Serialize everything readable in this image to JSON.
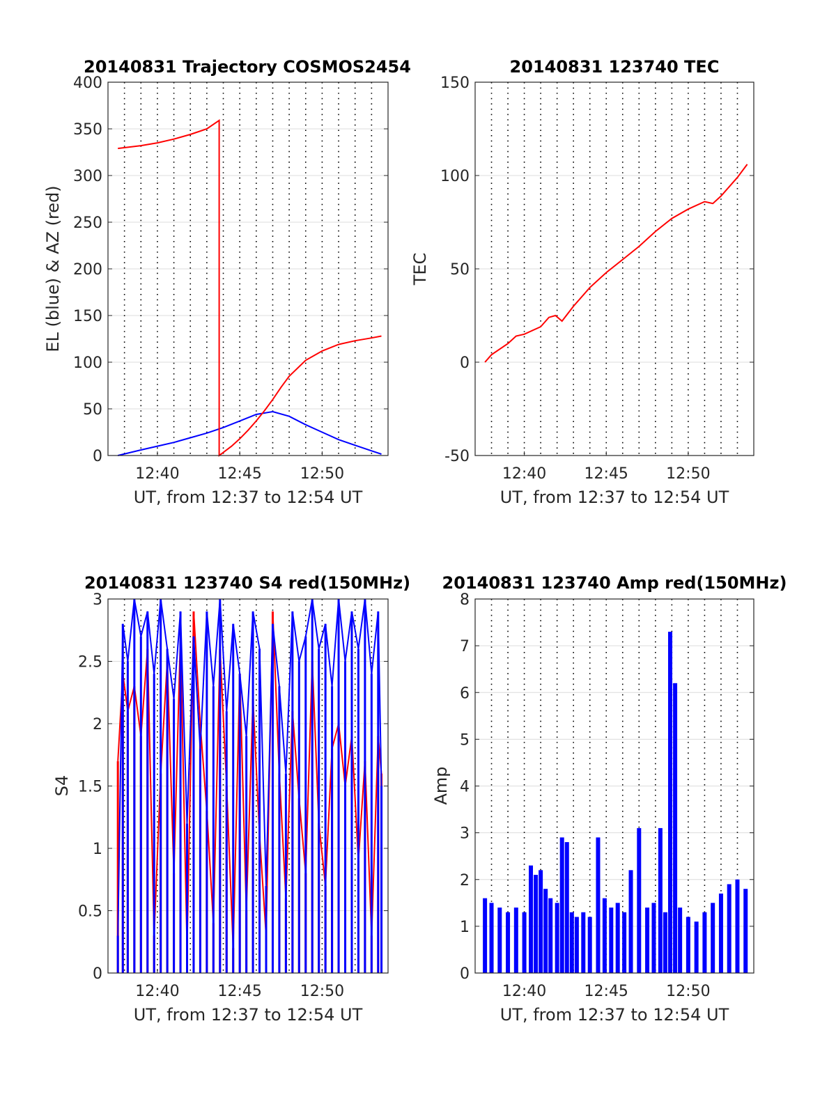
{
  "figure": {
    "background": "#ffffff"
  },
  "colors": {
    "el": "#0000ff",
    "az": "#ff0000",
    "tec": "#ff0000",
    "s4_a": "#ff0000",
    "s4_b": "#0000ff",
    "amp": "#0000ff"
  },
  "panels": [
    {
      "id": "traj",
      "title": "20140831 Trajectory COSMOS2454",
      "xlabel": "UT, from 12:37 to 12:54 UT",
      "ylabel": "EL (blue) & AZ (red)",
      "xticks": [
        "12:40",
        "12:45",
        "12:50"
      ],
      "yticks": [
        "0",
        "50",
        "100",
        "150",
        "200",
        "250",
        "300",
        "350",
        "400"
      ]
    },
    {
      "id": "tec",
      "title": "20140831 123740 TEC",
      "xlabel": "UT, from 12:37 to 12:54 UT",
      "ylabel": "TEC",
      "xticks": [
        "12:40",
        "12:45",
        "12:50"
      ],
      "yticks": [
        "-50",
        "0",
        "50",
        "100",
        "150"
      ]
    },
    {
      "id": "s4",
      "title": "20140831 123740 S4 red(150MHz)",
      "xlabel": "UT, from 12:37 to 12:54 UT",
      "ylabel": "S4",
      "xticks": [
        "12:40",
        "12:45",
        "12:50"
      ],
      "yticks": [
        "0",
        "0.5",
        "1",
        "1.5",
        "2",
        "2.5",
        "3"
      ]
    },
    {
      "id": "amp",
      "title": "20140831 123740 Amp red(150MHz)",
      "xlabel": "UT, from 12:37 to 12:54 UT",
      "ylabel": "Amp",
      "xticks": [
        "12:40",
        "12:45",
        "12:50"
      ],
      "yticks": [
        "0",
        "1",
        "2",
        "3",
        "4",
        "5",
        "6",
        "7",
        "8"
      ]
    }
  ],
  "chart_data": [
    {
      "type": "line",
      "title": "20140831 Trajectory COSMOS2454",
      "xlabel": "UT, from 12:37 to 12:54 UT",
      "ylabel": "EL (blue) & AZ (red)",
      "xlim": [
        "12:37",
        "12:54"
      ],
      "ylim": [
        0,
        400
      ],
      "grid": true,
      "x_unit": "minutes since 12:37",
      "series": [
        {
          "color": "#0000ff",
          "x": [
            0.6,
            2,
            3,
            4,
            5,
            6,
            7,
            8,
            9,
            10,
            11,
            12,
            13,
            14,
            15,
            16,
            16.6
          ],
          "y": [
            0,
            6,
            10,
            14,
            19,
            24,
            30,
            37,
            44,
            47,
            42,
            33,
            25,
            17,
            11,
            5,
            1.5
          ]
        },
        {
          "color": "#ff0000",
          "x": [
            0.6,
            2,
            3,
            4,
            5,
            5.5,
            6,
            6.75,
            6.75,
            7.5,
            8,
            8.5,
            9,
            9.5,
            10,
            10.5,
            11,
            12,
            13,
            14,
            15,
            16,
            16.6
          ],
          "y": [
            329,
            332,
            335,
            339,
            344,
            347,
            350,
            359,
            0,
            10,
            18,
            27,
            37,
            48,
            60,
            73,
            85,
            102,
            112,
            119,
            123,
            126,
            128
          ]
        }
      ]
    },
    {
      "type": "line",
      "title": "20140831 123740 TEC",
      "xlabel": "UT, from 12:37 to 12:54 UT",
      "ylabel": "TEC",
      "xlim": [
        "12:37",
        "12:54"
      ],
      "ylim": [
        -50,
        150
      ],
      "grid": true,
      "x_unit": "minutes since 12:37",
      "series": [
        {
          "color": "#ff0000",
          "x": [
            0.6,
            1,
            2,
            2.5,
            3,
            4,
            4.5,
            4.9,
            5.3,
            6,
            7,
            8,
            9,
            10,
            11,
            12,
            13,
            14,
            14.5,
            15,
            16,
            16.6
          ],
          "y": [
            0,
            4,
            10,
            14,
            15,
            19,
            24,
            25,
            22,
            30,
            40,
            48,
            55,
            62,
            70,
            77,
            82,
            86,
            85,
            89,
            99,
            106
          ]
        }
      ]
    },
    {
      "type": "line",
      "title": "20140831 123740 S4 red(150MHz)",
      "xlabel": "UT, from 12:37 to 12:54 UT",
      "ylabel": "S4",
      "xlim": [
        "12:37",
        "12:54"
      ],
      "ylim": [
        0,
        3
      ],
      "grid": true,
      "x_unit": "minutes since 12:37",
      "note": "",
      "series": [
        {
          "color": "#ff0000",
          "x": [
            0.6,
            0.9,
            1.2,
            1.6,
            2.0,
            2.4,
            2.8,
            3.2,
            3.6,
            4.0,
            4.4,
            4.8,
            5.2,
            5.6,
            6.0,
            6.4,
            6.8,
            7.2,
            7.6,
            8.0,
            8.4,
            8.8,
            9.2,
            9.6,
            10.0,
            10.4,
            10.8,
            11.2,
            11.6,
            12.0,
            12.4,
            12.8,
            13.2,
            13.6,
            14.0,
            14.4,
            14.8,
            15.2,
            15.6,
            16.0,
            16.4,
            16.6
          ],
          "y": [
            1.7,
            2.4,
            2.1,
            2.3,
            1.9,
            2.6,
            0.3,
            1.6,
            2.5,
            0.8,
            2.7,
            0.2,
            2.9,
            2.0,
            1.3,
            0.4,
            2.6,
            1.5,
            0.2,
            2.4,
            0.5,
            2.2,
            1.1,
            0.3,
            2.9,
            1.6,
            0.6,
            2.1,
            1.4,
            0.8,
            2.5,
            1.2,
            0.7,
            1.8,
            2.0,
            1.5,
            1.9,
            0.9,
            1.7,
            0.3,
            1.9,
            1.6
          ]
        },
        {
          "color": "#0000ff",
          "x": [
            0.6,
            0.9,
            1.2,
            1.6,
            2.0,
            2.4,
            2.8,
            3.2,
            3.6,
            4.0,
            4.4,
            4.8,
            5.2,
            5.6,
            6.0,
            6.4,
            6.8,
            7.2,
            7.6,
            8.0,
            8.4,
            8.8,
            9.2,
            9.6,
            10.0,
            10.4,
            10.8,
            11.2,
            11.6,
            12.0,
            12.4,
            12.8,
            13.2,
            13.6,
            14.0,
            14.4,
            14.8,
            15.2,
            15.6,
            16.0,
            16.4,
            16.6
          ],
          "y": [
            0.3,
            2.8,
            2.5,
            3.0,
            2.7,
            2.9,
            2.4,
            3.0,
            2.6,
            2.2,
            2.9,
            1.2,
            2.7,
            1.8,
            2.9,
            2.3,
            3.0,
            2.1,
            2.8,
            2.4,
            1.9,
            2.9,
            2.6,
            0.7,
            2.8,
            2.3,
            1.6,
            2.9,
            2.5,
            2.7,
            3.0,
            2.6,
            2.8,
            2.3,
            3.0,
            2.5,
            2.9,
            2.6,
            3.0,
            2.4,
            2.9,
            1.5
          ]
        }
      ]
    },
    {
      "type": "bar",
      "title": "20140831 123740 Amp red(150MHz)",
      "xlabel": "UT, from 12:37 to 12:54 UT",
      "ylabel": "Amp",
      "xlim": [
        "12:37",
        "12:54"
      ],
      "ylim": [
        0,
        8
      ],
      "grid": true,
      "x_unit": "minutes since 12:37",
      "series": [
        {
          "color": "#0000ff",
          "x": [
            0.6,
            1.0,
            1.5,
            2.0,
            2.5,
            3.0,
            3.4,
            3.7,
            4.0,
            4.3,
            4.6,
            5.0,
            5.3,
            5.6,
            5.9,
            6.2,
            6.6,
            7.0,
            7.5,
            7.9,
            8.3,
            8.7,
            9.1,
            9.5,
            10.0,
            10.5,
            10.9,
            11.3,
            11.6,
            11.9,
            12.2,
            12.5,
            13.0,
            13.5,
            14.0,
            14.5,
            15.0,
            15.5,
            16.0,
            16.5
          ],
          "y": [
            1.6,
            1.5,
            1.4,
            1.3,
            1.4,
            1.3,
            2.3,
            2.1,
            2.2,
            1.8,
            1.6,
            1.5,
            2.9,
            2.8,
            1.3,
            1.2,
            1.3,
            1.2,
            2.9,
            1.6,
            1.4,
            1.5,
            1.3,
            2.2,
            3.1,
            1.4,
            1.5,
            3.1,
            1.3,
            7.3,
            6.2,
            1.4,
            1.2,
            1.1,
            1.3,
            1.5,
            1.7,
            1.9,
            2.0,
            1.8
          ]
        }
      ]
    }
  ]
}
